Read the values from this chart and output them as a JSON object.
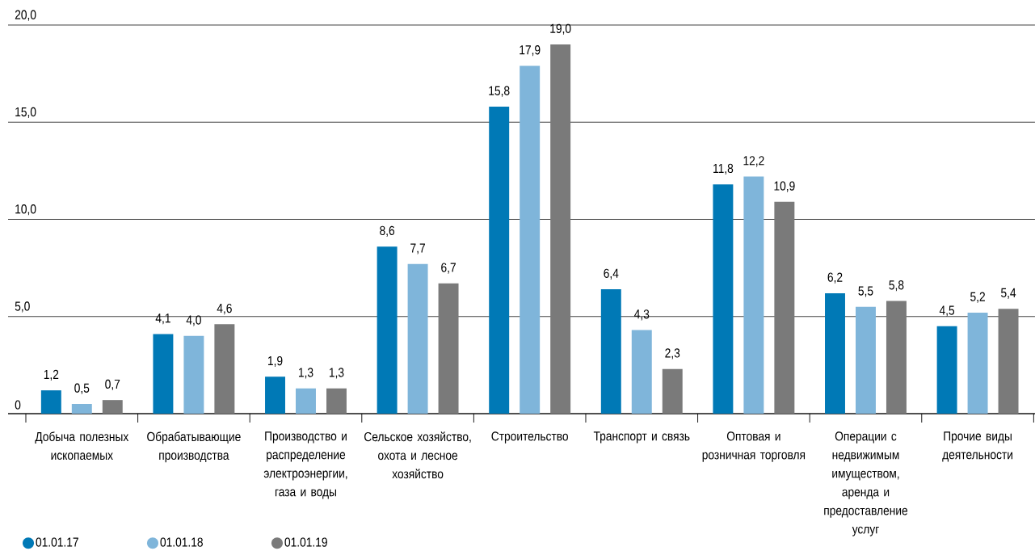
{
  "chart_data": {
    "type": "bar",
    "categories": [
      "Добыча полезных ископаемых",
      "Обрабатывающие производства",
      "Производство и распределение электроэнергии, газа и воды",
      "Сельское хозяйство, охота и лесное хозяйство",
      "Строительство",
      "Транспорт и связь",
      "Оптовая и розничная торговля",
      "Операции с недвижимым имуществом, аренда и предоставление услуг",
      "Прочие виды деятельности"
    ],
    "series": [
      {
        "name": "01.01.17",
        "color": "#0079b6",
        "values": [
          1.2,
          4.1,
          1.9,
          8.6,
          15.8,
          6.4,
          11.8,
          6.2,
          4.5
        ],
        "value_labels": [
          "1,2",
          "4,1",
          "1,9",
          "8,6",
          "15,8",
          "6,4",
          "11,8",
          "6,2",
          "4,5"
        ]
      },
      {
        "name": "01.01.18",
        "color": "#7fb5da",
        "values": [
          0.5,
          4.0,
          1.3,
          7.7,
          17.9,
          4.3,
          12.2,
          5.5,
          5.2
        ],
        "value_labels": [
          "0,5",
          "4,0",
          "1,3",
          "7,7",
          "17,9",
          "4,3",
          "12,2",
          "5,5",
          "5,2"
        ]
      },
      {
        "name": "01.01.19",
        "color": "#7a7a7a",
        "values": [
          0.7,
          4.6,
          1.3,
          6.7,
          19.0,
          2.3,
          10.9,
          5.8,
          5.4
        ],
        "value_labels": [
          "0,7",
          "4,6",
          "1,3",
          "6,7",
          "19,0",
          "2,3",
          "10,9",
          "5,8",
          "5,4"
        ]
      }
    ],
    "ylim": [
      0,
      20
    ],
    "yticks": [
      0,
      {
        "value": 5,
        "label": "5,0"
      },
      {
        "value": 10,
        "label": "10,0"
      },
      {
        "value": 15,
        "label": "15,0"
      },
      {
        "value": 20,
        "label": "20,0"
      }
    ],
    "grid": "y",
    "legend": "bottom left"
  }
}
